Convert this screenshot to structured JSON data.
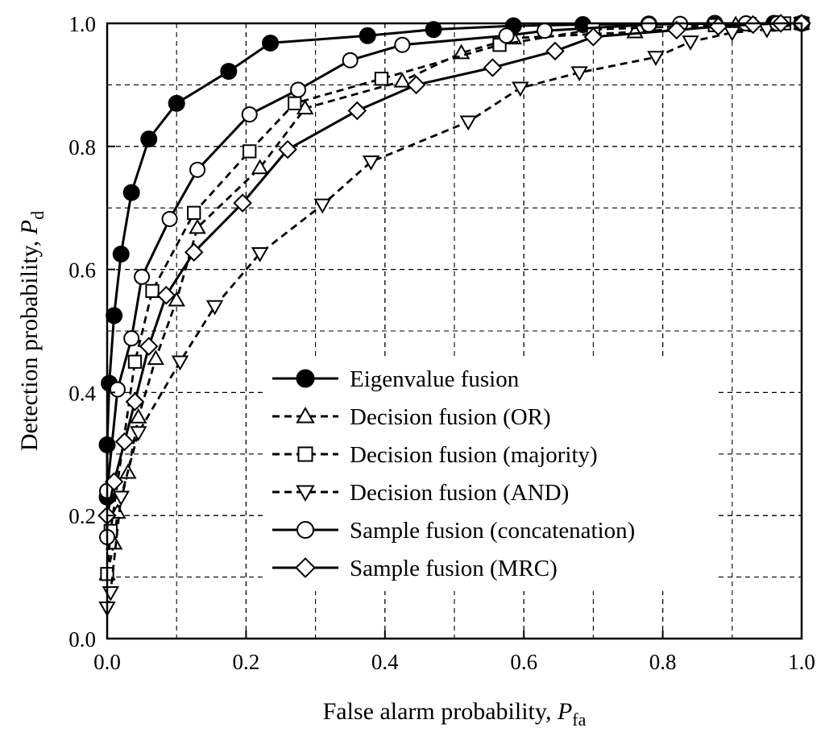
{
  "chart_data": {
    "type": "line",
    "title": "",
    "xlabel": {
      "prefix": "False alarm probability, ",
      "symbol": "P",
      "subscript": "fa"
    },
    "ylabel": {
      "prefix": "Detection probability, ",
      "symbol": "P",
      "subscript": "d"
    },
    "xlim": [
      0,
      1
    ],
    "ylim": [
      0,
      1
    ],
    "xticks": [
      0.0,
      0.2,
      0.4,
      0.6,
      0.8,
      1.0
    ],
    "yticks": [
      0.0,
      0.2,
      0.4,
      0.6,
      0.8,
      1.0
    ],
    "xtick_labels": [
      "0.0",
      "0.2",
      "0.4",
      "0.6",
      "0.8",
      "1.0"
    ],
    "ytick_labels": [
      "0.0",
      "0.2",
      "0.4",
      "0.6",
      "0.8",
      "1.0"
    ],
    "grid": true,
    "grid_step": 0.1,
    "legend_position": "center-right",
    "series": [
      {
        "name": "Eigenvalue fusion",
        "line": "solid",
        "marker": "filled-circle",
        "x": [
          0.0,
          0.0,
          0.003,
          0.01,
          0.02,
          0.035,
          0.06,
          0.1,
          0.175,
          0.235,
          0.375,
          0.47,
          0.585,
          0.685,
          0.78,
          0.875,
          0.96,
          1.0
        ],
        "y": [
          0.23,
          0.315,
          0.415,
          0.525,
          0.625,
          0.725,
          0.812,
          0.87,
          0.922,
          0.968,
          0.98,
          0.99,
          0.996,
          0.998,
          0.999,
          1.0,
          1.0,
          1.0
        ]
      },
      {
        "name": "Decision fusion (OR)",
        "line": "dashed",
        "marker": "triangle-up",
        "x": [
          0.0,
          0.01,
          0.015,
          0.03,
          0.045,
          0.07,
          0.1,
          0.13,
          0.22,
          0.285,
          0.425,
          0.51,
          0.585,
          0.76,
          0.905,
          1.0
        ],
        "y": [
          0.105,
          0.155,
          0.205,
          0.27,
          0.36,
          0.455,
          0.55,
          0.668,
          0.765,
          0.862,
          0.906,
          0.952,
          0.976,
          0.986,
          0.998,
          1.0
        ],
        "x_fix": true
      },
      {
        "name": "Decision fusion (majority)",
        "line": "dashed",
        "marker": "square",
        "x": [
          0.0,
          0.005,
          0.04,
          0.065,
          0.125,
          0.205,
          0.27,
          0.395,
          0.565,
          0.7,
          0.875,
          0.925,
          0.975,
          1.0
        ],
        "y": [
          0.105,
          0.175,
          0.45,
          0.565,
          0.692,
          0.792,
          0.87,
          0.91,
          0.965,
          0.99,
          0.997,
          0.999,
          1.0,
          1.0
        ]
      },
      {
        "name": "Decision fusion (AND)",
        "line": "dashed",
        "marker": "triangle-down",
        "x": [
          0.0,
          0.005,
          0.02,
          0.045,
          0.105,
          0.155,
          0.22,
          0.31,
          0.38,
          0.52,
          0.595,
          0.68,
          0.79,
          0.84,
          0.9,
          0.95,
          1.0
        ],
        "y": [
          0.05,
          0.075,
          0.23,
          0.335,
          0.45,
          0.54,
          0.626,
          0.705,
          0.775,
          0.84,
          0.895,
          0.92,
          0.945,
          0.97,
          0.985,
          0.99,
          1.0
        ]
      },
      {
        "name": "Sample fusion (concatenation)",
        "line": "solid",
        "marker": "open-circle",
        "x": [
          0.0,
          0.0,
          0.015,
          0.035,
          0.05,
          0.09,
          0.13,
          0.205,
          0.275,
          0.35,
          0.425,
          0.575,
          0.63,
          0.78,
          0.825,
          0.92,
          0.965,
          1.0
        ],
        "y": [
          0.165,
          0.24,
          0.405,
          0.488,
          0.588,
          0.682,
          0.762,
          0.852,
          0.892,
          0.94,
          0.965,
          0.98,
          0.988,
          0.998,
          0.999,
          1.0,
          1.0,
          1.0
        ]
      },
      {
        "name": "Sample fusion (MRC)",
        "line": "solid",
        "marker": "diamond",
        "x": [
          0.0,
          0.01,
          0.025,
          0.04,
          0.06,
          0.085,
          0.125,
          0.195,
          0.26,
          0.36,
          0.445,
          0.555,
          0.645,
          0.7,
          0.82,
          0.88,
          0.93,
          0.97,
          1.0
        ],
        "y": [
          0.2,
          0.255,
          0.32,
          0.385,
          0.475,
          0.558,
          0.628,
          0.708,
          0.795,
          0.858,
          0.9,
          0.928,
          0.955,
          0.978,
          0.989,
          0.995,
          0.998,
          1.0,
          1.0
        ]
      }
    ]
  }
}
